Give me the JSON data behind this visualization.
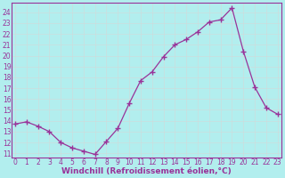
{
  "x": [
    0,
    1,
    2,
    3,
    4,
    5,
    6,
    7,
    8,
    9,
    10,
    11,
    12,
    13,
    14,
    15,
    16,
    17,
    18,
    19,
    20,
    21,
    22,
    23
  ],
  "y": [
    13.7,
    13.9,
    13.5,
    13.0,
    12.0,
    11.5,
    11.2,
    10.9,
    12.1,
    13.3,
    15.6,
    17.7,
    18.5,
    19.9,
    21.0,
    21.5,
    22.2,
    23.1,
    23.3,
    24.4,
    20.4,
    17.1,
    15.2,
    14.6
  ],
  "line_color": "#993399",
  "marker": "+",
  "background_color": "#b2eeee",
  "grid_color": "#ccdddd",
  "xlabel": "Windchill (Refroidissement éolien,°C)",
  "yticks": [
    11,
    12,
    13,
    14,
    15,
    16,
    17,
    18,
    19,
    20,
    21,
    22,
    23,
    24
  ],
  "xticks": [
    0,
    1,
    2,
    3,
    4,
    5,
    6,
    7,
    8,
    9,
    10,
    11,
    12,
    13,
    14,
    15,
    16,
    17,
    18,
    19,
    20,
    21,
    22,
    23
  ],
  "xlim": [
    -0.3,
    23.3
  ],
  "ylim": [
    10.6,
    24.9
  ],
  "font_color": "#993399",
  "tick_fontsize": 5.5,
  "label_fontsize": 6.5
}
